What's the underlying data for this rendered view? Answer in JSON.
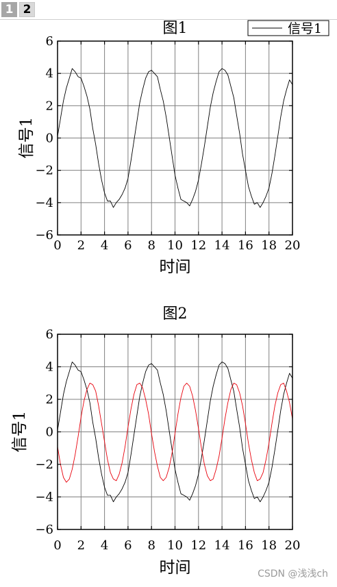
{
  "tabs": [
    {
      "label": "1",
      "active": false
    },
    {
      "label": "2",
      "active": true
    }
  ],
  "watermark": "CSDN @浅浅ch",
  "chart_data": [
    {
      "type": "line",
      "title": "图1",
      "xlabel": "时间",
      "ylabel": "信号1",
      "xlim": [
        0,
        20
      ],
      "ylim": [
        -6,
        6
      ],
      "xticks": [
        "0",
        "2",
        "4",
        "6",
        "8",
        "10",
        "12",
        "14",
        "16",
        "18",
        "20"
      ],
      "yticks": [
        "−6",
        "−4",
        "−2",
        "0",
        "2",
        "4",
        "6"
      ],
      "grid": true,
      "legend": {
        "position": "top-right",
        "entries": [
          "信号1"
        ]
      },
      "series": [
        {
          "name": "信号1",
          "color": "#000000",
          "x": [
            0,
            0.25,
            0.5,
            0.75,
            1,
            1.25,
            1.5,
            1.75,
            2,
            2.25,
            2.5,
            2.75,
            3,
            3.25,
            3.5,
            3.75,
            4,
            4.25,
            4.5,
            4.75,
            5,
            5.25,
            5.5,
            5.75,
            6,
            6.25,
            6.5,
            6.75,
            7,
            7.25,
            7.5,
            7.75,
            8,
            8.25,
            8.5,
            8.75,
            9,
            9.25,
            9.5,
            9.75,
            10,
            10.25,
            10.5,
            10.75,
            11,
            11.25,
            11.5,
            11.75,
            12,
            12.25,
            12.5,
            12.75,
            13,
            13.25,
            13.5,
            13.75,
            14,
            14.25,
            14.5,
            14.75,
            15,
            15.25,
            15.5,
            15.75,
            16,
            16.25,
            16.5,
            16.75,
            17,
            17.25,
            17.5,
            17.75,
            18,
            18.25,
            18.5,
            18.75,
            19,
            19.25,
            19.5,
            19.75,
            20
          ],
          "y": [
            0.1,
            1.2,
            2.3,
            3.1,
            3.7,
            4.3,
            4.1,
            3.8,
            3.7,
            3.2,
            2.6,
            1.8,
            0.6,
            -0.4,
            -1.6,
            -2.6,
            -3.4,
            -3.9,
            -3.9,
            -4.3,
            -4.0,
            -3.8,
            -3.5,
            -3.1,
            -2.5,
            -1.4,
            -0.2,
            1.0,
            2.2,
            3.0,
            3.7,
            4.1,
            4.2,
            4.0,
            3.8,
            3.0,
            2.3,
            1.3,
            0.1,
            -1.1,
            -2.3,
            -3.1,
            -3.8,
            -3.9,
            -4.0,
            -4.2,
            -3.8,
            -3.3,
            -2.6,
            -1.6,
            -0.5,
            0.7,
            1.9,
            2.8,
            3.5,
            4.1,
            4.3,
            4.2,
            3.9,
            3.2,
            2.5,
            1.4,
            0.3,
            -1.0,
            -2.0,
            -3.0,
            -3.6,
            -4.1,
            -4.0,
            -4.3,
            -4.0,
            -3.6,
            -3.1,
            -2.2,
            -1.1,
            0.1,
            1.3,
            2.3,
            3.0,
            3.6,
            3.3
          ]
        }
      ]
    },
    {
      "type": "line",
      "title": "图2",
      "xlabel": "时间",
      "ylabel": "信号1",
      "xlim": [
        0,
        20
      ],
      "ylim": [
        -6,
        6
      ],
      "xticks": [
        "0",
        "2",
        "4",
        "6",
        "8",
        "10",
        "12",
        "14",
        "16",
        "18",
        "20"
      ],
      "yticks": [
        "−6",
        "−4",
        "−2",
        "0",
        "2",
        "4",
        "6"
      ],
      "grid": true,
      "series": [
        {
          "color": "#000000",
          "x": [
            0,
            0.25,
            0.5,
            0.75,
            1,
            1.25,
            1.5,
            1.75,
            2,
            2.25,
            2.5,
            2.75,
            3,
            3.25,
            3.5,
            3.75,
            4,
            4.25,
            4.5,
            4.75,
            5,
            5.25,
            5.5,
            5.75,
            6,
            6.25,
            6.5,
            6.75,
            7,
            7.25,
            7.5,
            7.75,
            8,
            8.25,
            8.5,
            8.75,
            9,
            9.25,
            9.5,
            9.75,
            10,
            10.25,
            10.5,
            10.75,
            11,
            11.25,
            11.5,
            11.75,
            12,
            12.25,
            12.5,
            12.75,
            13,
            13.25,
            13.5,
            13.75,
            14,
            14.25,
            14.5,
            14.75,
            15,
            15.25,
            15.5,
            15.75,
            16,
            16.25,
            16.5,
            16.75,
            17,
            17.25,
            17.5,
            17.75,
            18,
            18.25,
            18.5,
            18.75,
            19,
            19.25,
            19.5,
            19.75,
            20
          ],
          "y": [
            0.1,
            1.2,
            2.3,
            3.1,
            3.7,
            4.3,
            4.1,
            3.8,
            3.7,
            3.2,
            2.6,
            1.8,
            0.6,
            -0.4,
            -1.6,
            -2.6,
            -3.4,
            -3.9,
            -3.9,
            -4.3,
            -4.0,
            -3.8,
            -3.5,
            -3.1,
            -2.5,
            -1.4,
            -0.2,
            1.0,
            2.2,
            3.0,
            3.7,
            4.1,
            4.2,
            4.0,
            3.8,
            3.0,
            2.3,
            1.3,
            0.1,
            -1.1,
            -2.3,
            -3.1,
            -3.8,
            -3.9,
            -4.0,
            -4.2,
            -3.8,
            -3.3,
            -2.6,
            -1.6,
            -0.5,
            0.7,
            1.9,
            2.8,
            3.5,
            4.1,
            4.3,
            4.2,
            3.9,
            3.2,
            2.5,
            1.4,
            0.3,
            -1.0,
            -2.0,
            -3.0,
            -3.6,
            -4.1,
            -4.0,
            -4.3,
            -4.0,
            -3.6,
            -3.1,
            -2.2,
            -1.1,
            0.1,
            1.3,
            2.3,
            3.0,
            3.6,
            3.3
          ]
        },
        {
          "color": "#e8000b",
          "x": [
            0,
            0.25,
            0.5,
            0.75,
            1,
            1.25,
            1.5,
            1.75,
            2,
            2.25,
            2.5,
            2.75,
            3,
            3.25,
            3.5,
            3.75,
            4,
            4.25,
            4.5,
            4.75,
            5,
            5.25,
            5.5,
            5.75,
            6,
            6.25,
            6.5,
            6.75,
            7,
            7.25,
            7.5,
            7.75,
            8,
            8.25,
            8.5,
            8.75,
            9,
            9.25,
            9.5,
            9.75,
            10,
            10.25,
            10.5,
            10.75,
            11,
            11.25,
            11.5,
            11.75,
            12,
            12.25,
            12.5,
            12.75,
            13,
            13.25,
            13.5,
            13.75,
            14,
            14.25,
            14.5,
            14.75,
            15,
            15.25,
            15.5,
            15.75,
            16,
            16.25,
            16.5,
            16.75,
            17,
            17.25,
            17.5,
            17.75,
            18,
            18.25,
            18.5,
            18.75,
            19,
            19.25,
            19.5,
            19.75,
            20
          ],
          "y": [
            -0.9,
            -2.0,
            -2.8,
            -3.1,
            -2.9,
            -2.3,
            -1.4,
            -0.3,
            0.9,
            1.9,
            2.6,
            3.0,
            2.9,
            2.5,
            1.6,
            0.5,
            -0.6,
            -1.7,
            -2.5,
            -2.9,
            -3.0,
            -2.6,
            -1.9,
            -0.9,
            0.3,
            1.4,
            2.3,
            2.9,
            3.0,
            2.7,
            2.0,
            1.1,
            -0.1,
            -1.2,
            -2.1,
            -2.8,
            -3.0,
            -2.8,
            -2.2,
            -1.3,
            -0.1,
            1.1,
            2.1,
            2.8,
            3.0,
            2.8,
            2.2,
            1.3,
            0.2,
            -1.0,
            -2.0,
            -2.7,
            -3.0,
            -2.9,
            -2.3,
            -1.5,
            -0.4,
            0.8,
            1.8,
            2.6,
            3.0,
            2.9,
            2.4,
            1.6,
            0.5,
            -0.7,
            -1.7,
            -2.5,
            -3.0,
            -2.9,
            -2.5,
            -1.7,
            -0.7,
            0.5,
            1.6,
            2.4,
            2.9,
            3.0,
            2.5,
            1.8,
            0.8
          ]
        }
      ]
    }
  ]
}
